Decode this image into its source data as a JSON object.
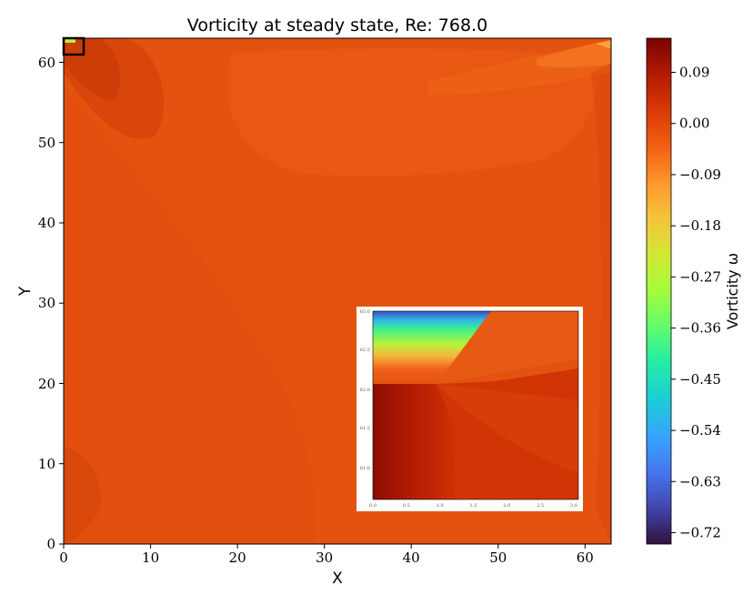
{
  "chart_data": {
    "type": "heatmap",
    "title": "Vorticity at steady state, Re: 768.0",
    "xlabel": "X",
    "ylabel": "Y",
    "xlim": [
      0,
      63
    ],
    "ylim": [
      0,
      63
    ],
    "x_ticks": [
      "0",
      "10",
      "20",
      "30",
      "40",
      "50",
      "60"
    ],
    "y_ticks": [
      "0",
      "10",
      "20",
      "30",
      "40",
      "50",
      "60"
    ],
    "colorbar": {
      "label": "Vorticity ω",
      "range": [
        -0.74,
        0.15
      ],
      "colormap": "turbo",
      "ticks": [
        "−0.72",
        "−0.63",
        "−0.54",
        "−0.45",
        "−0.36",
        "−0.27",
        "−0.18",
        "−0.09",
        "0.00",
        "0.09"
      ],
      "tick_values": [
        -0.72,
        -0.63,
        -0.54,
        -0.45,
        -0.36,
        -0.27,
        -0.18,
        -0.09,
        0.0,
        0.09
      ]
    },
    "inset": {
      "xlim": [
        0.0,
        3.0
      ],
      "ylim": [
        60.7,
        63.0
      ],
      "x_ticks": [
        "0.0",
        "0.5",
        "1.0",
        "1.5",
        "2.0",
        "2.5",
        "3.0"
      ],
      "y_ticks": [
        "61.0",
        "61.5",
        "62.0",
        "62.5",
        "63.0"
      ],
      "zoom_box": {
        "x": [
          0,
          2.3
        ],
        "y": [
          61,
          63
        ]
      }
    },
    "background_color": "#e4520f"
  }
}
